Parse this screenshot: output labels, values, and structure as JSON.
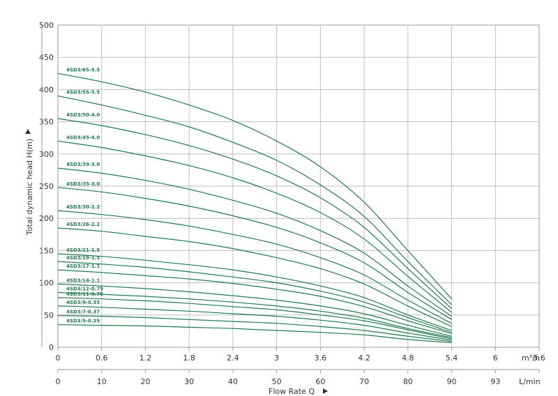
{
  "chart_data": {
    "type": "line",
    "ylabel": "Total dynamic head H(m)",
    "xlabel": "Flow Rate Q",
    "x_unit_top": "m³/h",
    "x_unit_bottom": "L/min",
    "ylim": [
      0,
      500
    ],
    "y_ticks": [
      "0",
      "50",
      "100",
      "150",
      "200",
      "250",
      "300",
      "350",
      "400",
      "450",
      "500"
    ],
    "x_ticks_m3h": [
      "0",
      "0.6",
      "1.2",
      "1.8",
      "2.4",
      "3",
      "3.6",
      "4.2",
      "4.8",
      "5.4",
      "6",
      "5.6"
    ],
    "x_ticks_lmin": [
      "0",
      "10",
      "20",
      "30",
      "40",
      "50",
      "60",
      "70",
      "80",
      "90",
      "93",
      ""
    ],
    "grid": true,
    "line_color": "#1f7a4c",
    "series": [
      {
        "name": "4SD3/65-5.5",
        "x": [
          0,
          0.6,
          1.2,
          1.8,
          2.4,
          3.0,
          3.6,
          4.2,
          4.8,
          5.4
        ],
        "values": [
          425,
          412,
          396,
          376,
          352,
          320,
          280,
          225,
          150,
          75
        ]
      },
      {
        "name": "4SD3/55-5.5",
        "x": [
          0,
          0.6,
          1.2,
          1.8,
          2.4,
          3.0,
          3.6,
          4.2,
          4.8,
          5.4
        ],
        "values": [
          390,
          376,
          360,
          342,
          318,
          290,
          252,
          203,
          133,
          66
        ]
      },
      {
        "name": "4SD3/50-4.0",
        "x": [
          0,
          0.6,
          1.2,
          1.8,
          2.4,
          3.0,
          3.6,
          4.2,
          4.8,
          5.4
        ],
        "values": [
          355,
          344,
          330,
          313,
          292,
          266,
          232,
          186,
          122,
          60
        ]
      },
      {
        "name": "4SD3/45-4.0",
        "x": [
          0,
          0.6,
          1.2,
          1.8,
          2.4,
          3.0,
          3.6,
          4.2,
          4.8,
          5.4
        ],
        "values": [
          320,
          310,
          297,
          282,
          263,
          239,
          209,
          168,
          110,
          54
        ]
      },
      {
        "name": "4SD3/39-3.0",
        "x": [
          0,
          0.6,
          1.2,
          1.8,
          2.4,
          3.0,
          3.6,
          4.2,
          4.8,
          5.4
        ],
        "values": [
          278,
          270,
          259,
          245,
          228,
          208,
          181,
          146,
          95,
          48
        ]
      },
      {
        "name": "4SD3/35-3.0",
        "x": [
          0,
          0.6,
          1.2,
          1.8,
          2.4,
          3.0,
          3.6,
          4.2,
          4.8,
          5.4
        ],
        "values": [
          248,
          241,
          231,
          219,
          204,
          186,
          162,
          131,
          85,
          43
        ]
      },
      {
        "name": "4SD3/30-2.2",
        "x": [
          0,
          0.6,
          1.2,
          1.8,
          2.4,
          3.0,
          3.6,
          4.2,
          4.8,
          5.4
        ],
        "values": [
          212,
          206,
          198,
          188,
          175,
          160,
          139,
          112,
          73,
          37
        ]
      },
      {
        "name": "4SD3/26-2.2",
        "x": [
          0,
          0.6,
          1.2,
          1.8,
          2.4,
          3.0,
          3.6,
          4.2,
          4.8,
          5.4
        ],
        "values": [
          185,
          180,
          172,
          164,
          153,
          139,
          122,
          98,
          64,
          32
        ]
      },
      {
        "name": "4SD3/21-1.5",
        "x": [
          0,
          0.6,
          1.2,
          1.8,
          2.4,
          3.0,
          3.6,
          4.2,
          4.8,
          5.4
        ],
        "values": [
          145,
          141,
          135,
          128,
          120,
          109,
          95,
          77,
          50,
          26
        ]
      },
      {
        "name": "4SD3/19-1.5",
        "x": [
          0,
          0.6,
          1.2,
          1.8,
          2.4,
          3.0,
          3.6,
          4.2,
          4.8,
          5.4
        ],
        "values": [
          133,
          129,
          124,
          117,
          109,
          100,
          87,
          70,
          46,
          23
        ]
      },
      {
        "name": "4SD3/17-1.1",
        "x": [
          0,
          0.6,
          1.2,
          1.8,
          2.4,
          3.0,
          3.6,
          4.2,
          4.8,
          5.4
        ],
        "values": [
          120,
          116,
          111,
          106,
          99,
          90,
          79,
          63,
          41,
          21
        ]
      },
      {
        "name": "4SD3/14-1.1",
        "x": [
          0,
          0.6,
          1.2,
          1.8,
          2.4,
          3.0,
          3.6,
          4.2,
          4.8,
          5.4
        ],
        "values": [
          98,
          95,
          91,
          86,
          80,
          73,
          64,
          52,
          34,
          17
        ]
      },
      {
        "name": "4SD3/12-0.75",
        "x": [
          0,
          0.6,
          1.2,
          1.8,
          2.4,
          3.0,
          3.6,
          4.2,
          4.8,
          5.4
        ],
        "values": [
          85,
          82,
          79,
          75,
          70,
          64,
          56,
          45,
          29,
          15
        ]
      },
      {
        "name": "4SD3/11-0.75",
        "x": [
          0,
          0.6,
          1.2,
          1.8,
          2.4,
          3.0,
          3.6,
          4.2,
          4.8,
          5.4
        ],
        "values": [
          77,
          75,
          72,
          68,
          63,
          58,
          50,
          41,
          27,
          13
        ]
      },
      {
        "name": "4SD3/9-0.55",
        "x": [
          0,
          0.6,
          1.2,
          1.8,
          2.4,
          3.0,
          3.6,
          4.2,
          4.8,
          5.4
        ],
        "values": [
          64,
          62,
          59,
          56,
          52,
          48,
          42,
          34,
          22,
          11
        ]
      },
      {
        "name": "4SD3/7-0.37",
        "x": [
          0,
          0.6,
          1.2,
          1.8,
          2.4,
          3.0,
          3.6,
          4.2,
          4.8,
          5.4
        ],
        "values": [
          49,
          48,
          46,
          43,
          40,
          37,
          32,
          26,
          17,
          9
        ]
      },
      {
        "name": "4SD3/5-0.25",
        "x": [
          0,
          0.6,
          1.2,
          1.8,
          2.4,
          3.0,
          3.6,
          4.2,
          4.8,
          5.4
        ],
        "values": [
          35,
          34,
          33,
          31,
          29,
          26,
          23,
          19,
          12,
          7
        ]
      }
    ]
  }
}
